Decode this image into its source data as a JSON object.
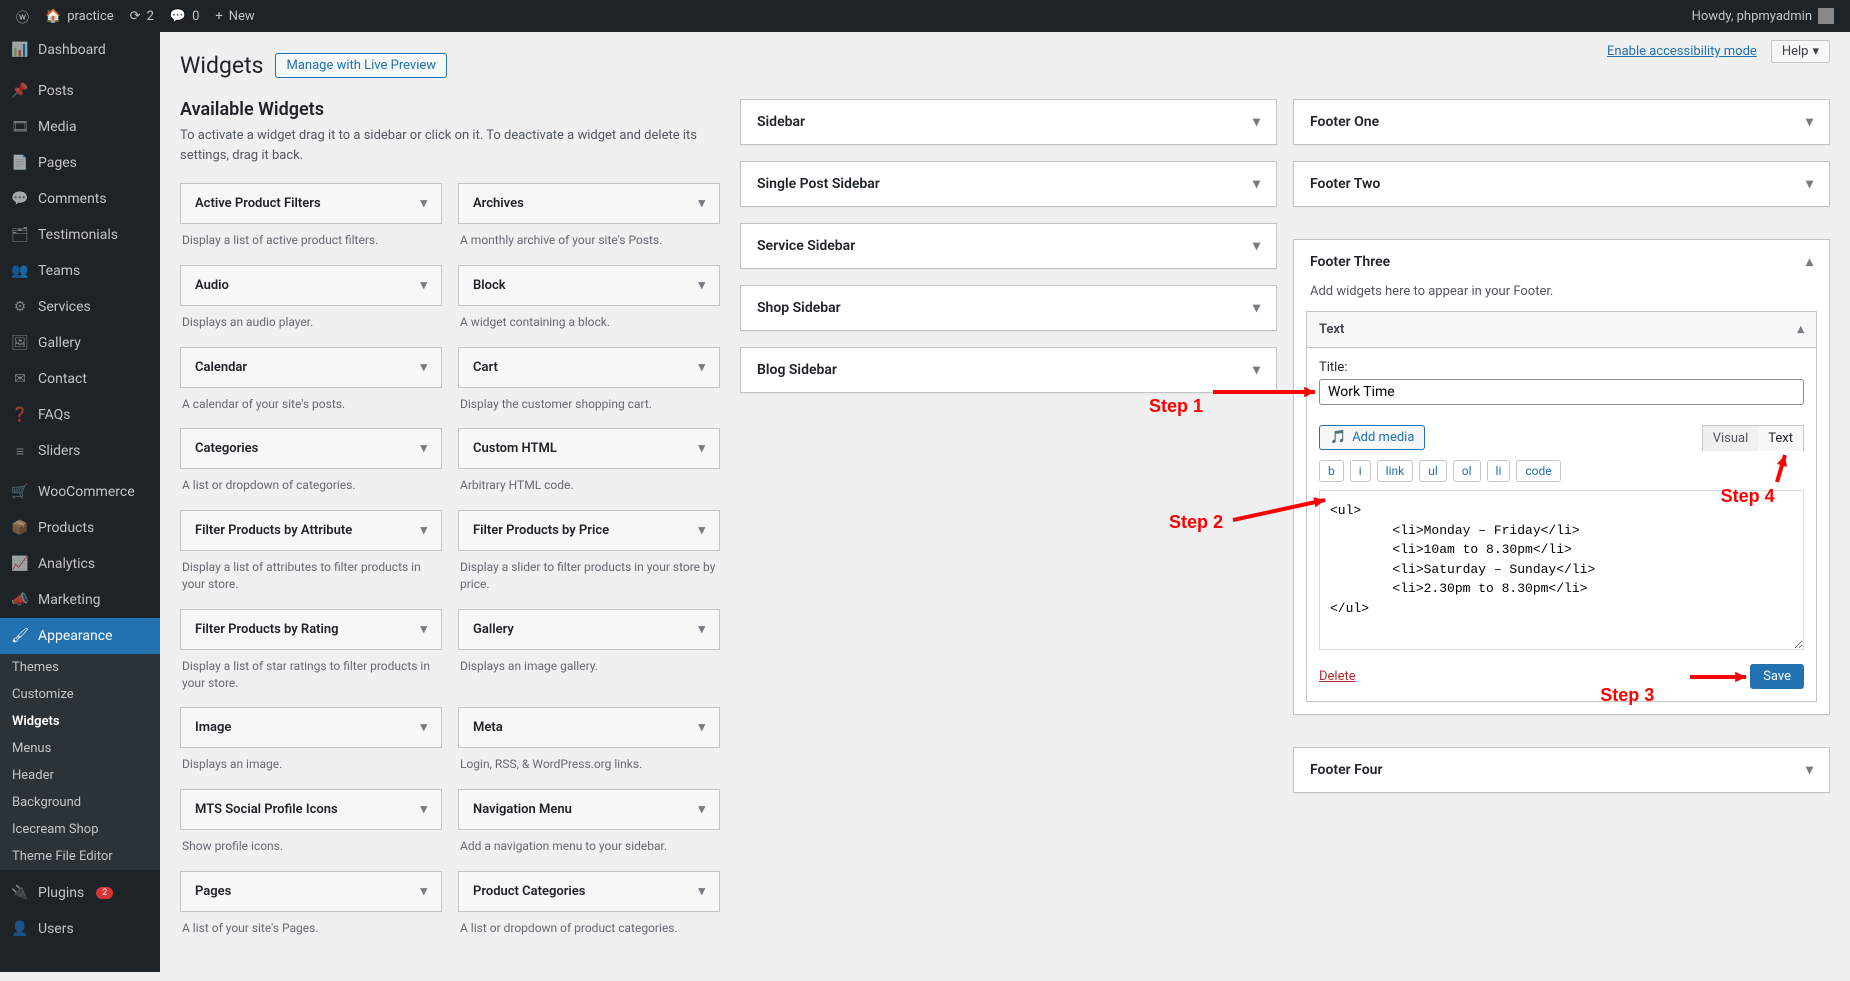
{
  "topbar": {
    "site_name": "practice",
    "updates_count": "2",
    "comments_count": "0",
    "new_label": "New",
    "howdy": "Howdy, phpmyadmin"
  },
  "top_actions": {
    "accessibility": "Enable accessibility mode",
    "help": "Help"
  },
  "sidebar": {
    "items": [
      {
        "label": "Dashboard",
        "icon": "dashboard"
      },
      {
        "label": "Posts",
        "icon": "pin"
      },
      {
        "label": "Media",
        "icon": "media"
      },
      {
        "label": "Pages",
        "icon": "page"
      },
      {
        "label": "Comments",
        "icon": "comment"
      },
      {
        "label": "Testimonials",
        "icon": "testimonial"
      },
      {
        "label": "Teams",
        "icon": "teams"
      },
      {
        "label": "Services",
        "icon": "services"
      },
      {
        "label": "Gallery",
        "icon": "gallery"
      },
      {
        "label": "Contact",
        "icon": "contact"
      },
      {
        "label": "FAQs",
        "icon": "faq"
      },
      {
        "label": "Sliders",
        "icon": "slider"
      },
      {
        "label": "WooCommerce",
        "icon": "woo"
      },
      {
        "label": "Products",
        "icon": "products"
      },
      {
        "label": "Analytics",
        "icon": "analytics"
      },
      {
        "label": "Marketing",
        "icon": "marketing"
      },
      {
        "label": "Appearance",
        "icon": "appearance",
        "active": true
      },
      {
        "label": "Plugins",
        "icon": "plugins",
        "badge": "2"
      },
      {
        "label": "Users",
        "icon": "users"
      }
    ],
    "appearance_sub": [
      "Themes",
      "Customize",
      "Widgets",
      "Menus",
      "Header",
      "Background",
      "Icecream Shop",
      "Theme File Editor"
    ],
    "appearance_current": "Widgets"
  },
  "page": {
    "title": "Widgets",
    "preview_btn": "Manage with Live Preview",
    "available_title": "Available Widgets",
    "available_desc": "To activate a widget drag it to a sidebar or click on it. To deactivate a widget and delete its settings, drag it back."
  },
  "widgets": [
    {
      "name": "Active Product Filters",
      "desc": "Display a list of active product filters."
    },
    {
      "name": "Archives",
      "desc": "A monthly archive of your site's Posts."
    },
    {
      "name": "Audio",
      "desc": "Displays an audio player."
    },
    {
      "name": "Block",
      "desc": "A widget containing a block."
    },
    {
      "name": "Calendar",
      "desc": "A calendar of your site's posts."
    },
    {
      "name": "Cart",
      "desc": "Display the customer shopping cart."
    },
    {
      "name": "Categories",
      "desc": "A list or dropdown of categories."
    },
    {
      "name": "Custom HTML",
      "desc": "Arbitrary HTML code."
    },
    {
      "name": "Filter Products by Attribute",
      "desc": "Display a list of attributes to filter products in your store."
    },
    {
      "name": "Filter Products by Price",
      "desc": "Display a slider to filter products in your store by price."
    },
    {
      "name": "Filter Products by Rating",
      "desc": "Display a list of star ratings to filter products in your store."
    },
    {
      "name": "Gallery",
      "desc": "Displays an image gallery."
    },
    {
      "name": "Image",
      "desc": "Displays an image."
    },
    {
      "name": "Meta",
      "desc": "Login, RSS, & WordPress.org links."
    },
    {
      "name": "MTS Social Profile Icons",
      "desc": "Show profile icons."
    },
    {
      "name": "Navigation Menu",
      "desc": "Add a navigation menu to your sidebar."
    },
    {
      "name": "Pages",
      "desc": "A list of your site's Pages."
    },
    {
      "name": "Product Categories",
      "desc": "A list or dropdown of product categories."
    }
  ],
  "areas_left": [
    "Sidebar",
    "Single Post Sidebar",
    "Service Sidebar",
    "Shop Sidebar",
    "Blog Sidebar"
  ],
  "areas_right_top": [
    "Footer One",
    "Footer Two"
  ],
  "footer_three": {
    "title": "Footer Three",
    "hint": "Add widgets here to appear in your Footer.",
    "widget_name": "Text",
    "title_label": "Title:",
    "title_value": "Work Time",
    "add_media": "Add media",
    "tab_visual": "Visual",
    "tab_text": "Text",
    "toolbar": [
      "b",
      "i",
      "link",
      "ul",
      "ol",
      "li",
      "code"
    ],
    "content": "<ul>\n        <li>Monday – Friday</li>\n        <li>10am to 8.30pm</li>\n        <li>Saturday – Sunday</li>\n        <li>2.30pm to 8.30pm</li>\n</ul>",
    "delete": "Delete",
    "save": "Save"
  },
  "areas_right_bottom": [
    "Footer Four"
  ],
  "annotations": {
    "step1": "Step 1",
    "step2": "Step 2",
    "step3": "Step 3",
    "step4": "Step 4"
  },
  "colors": {
    "accent": "#2271b1",
    "red": "#ff0000",
    "bg": "#f0f0f1",
    "panel": "#ffffff",
    "border": "#c3c4c7"
  }
}
